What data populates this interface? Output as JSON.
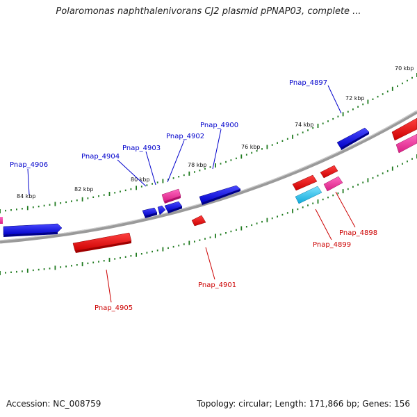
{
  "title": "Polaromonas naphthalenivorans CJ2 plasmid pPNAP03, complete ...",
  "footer": {
    "accession_label": "Accession:",
    "accession": "NC_008759",
    "topology_label": "Topology:",
    "topology": "circular",
    "length_label": "Length:",
    "length": "171,866 bp",
    "genes_label": "Genes:",
    "genes": "156"
  },
  "colors": {
    "forward_gene": "#0000e8",
    "reverse_gene": "#ee0000",
    "pink_gene": "#ee2f96",
    "cyan_gene": "#21c4ec",
    "backbone": "#888888",
    "tick_ring": "#1f7a1f",
    "forward_label": "#0000cc",
    "reverse_label": "#cc0000"
  },
  "kbp_ticks": [
    {
      "label": "70 kbp"
    },
    {
      "label": "72 kbp"
    },
    {
      "label": "74 kbp"
    },
    {
      "label": "76 kbp"
    },
    {
      "label": "78 kbp"
    },
    {
      "label": "80 kbp"
    },
    {
      "label": "82 kbp"
    },
    {
      "label": "84 kbp"
    }
  ],
  "forward_gene_labels": [
    {
      "name": "Pnap_4897"
    },
    {
      "name": "Pnap_4900"
    },
    {
      "name": "Pnap_4902"
    },
    {
      "name": "Pnap_4903"
    },
    {
      "name": "Pnap_4904"
    },
    {
      "name": "Pnap_4906"
    }
  ],
  "reverse_gene_labels": [
    {
      "name": "Pnap_4898"
    },
    {
      "name": "Pnap_4899"
    },
    {
      "name": "Pnap_4901"
    },
    {
      "name": "Pnap_4905"
    }
  ]
}
